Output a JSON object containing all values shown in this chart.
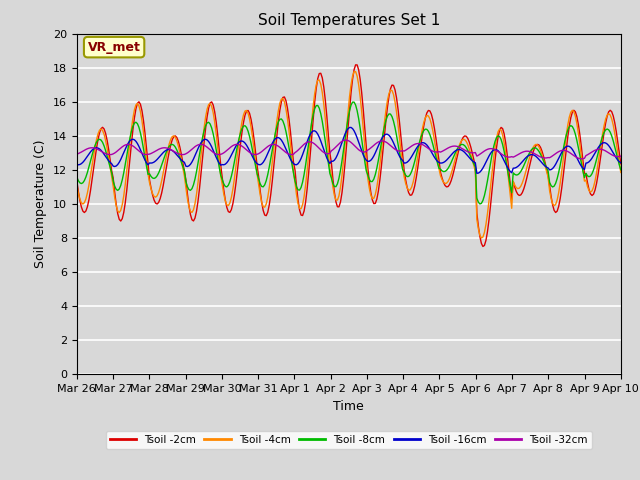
{
  "title": "Soil Temperatures Set 1",
  "xlabel": "Time",
  "ylabel": "Soil Temperature (C)",
  "ylim": [
    0,
    20
  ],
  "yticks": [
    0,
    2,
    4,
    6,
    8,
    10,
    12,
    14,
    16,
    18,
    20
  ],
  "bg_color": "#d8d8d8",
  "plot_bg_color": "#d8d8d8",
  "grid_color": "white",
  "annotation_text": "VR_met",
  "annotation_bg": "#ffffcc",
  "annotation_border": "#999900",
  "annotation_text_color": "#880000",
  "series_colors": [
    "#dd0000",
    "#ff8800",
    "#00bb00",
    "#0000cc",
    "#aa00aa"
  ],
  "series_labels": [
    "Tsoil -2cm",
    "Tsoil -4cm",
    "Tsoil -8cm",
    "Tsoil -16cm",
    "Tsoil -32cm"
  ],
  "x_tick_labels": [
    "Mar 26",
    "Mar 27",
    "Mar 28",
    "Mar 29",
    "Mar 30",
    "Mar 31",
    "Apr 1",
    "Apr 2",
    "Apr 3",
    "Apr 4",
    "Apr 5",
    "Apr 6",
    "Apr 7",
    "Apr 8",
    "Apr 9",
    "Apr 10"
  ],
  "n_days": 15,
  "pts_per_day": 24
}
